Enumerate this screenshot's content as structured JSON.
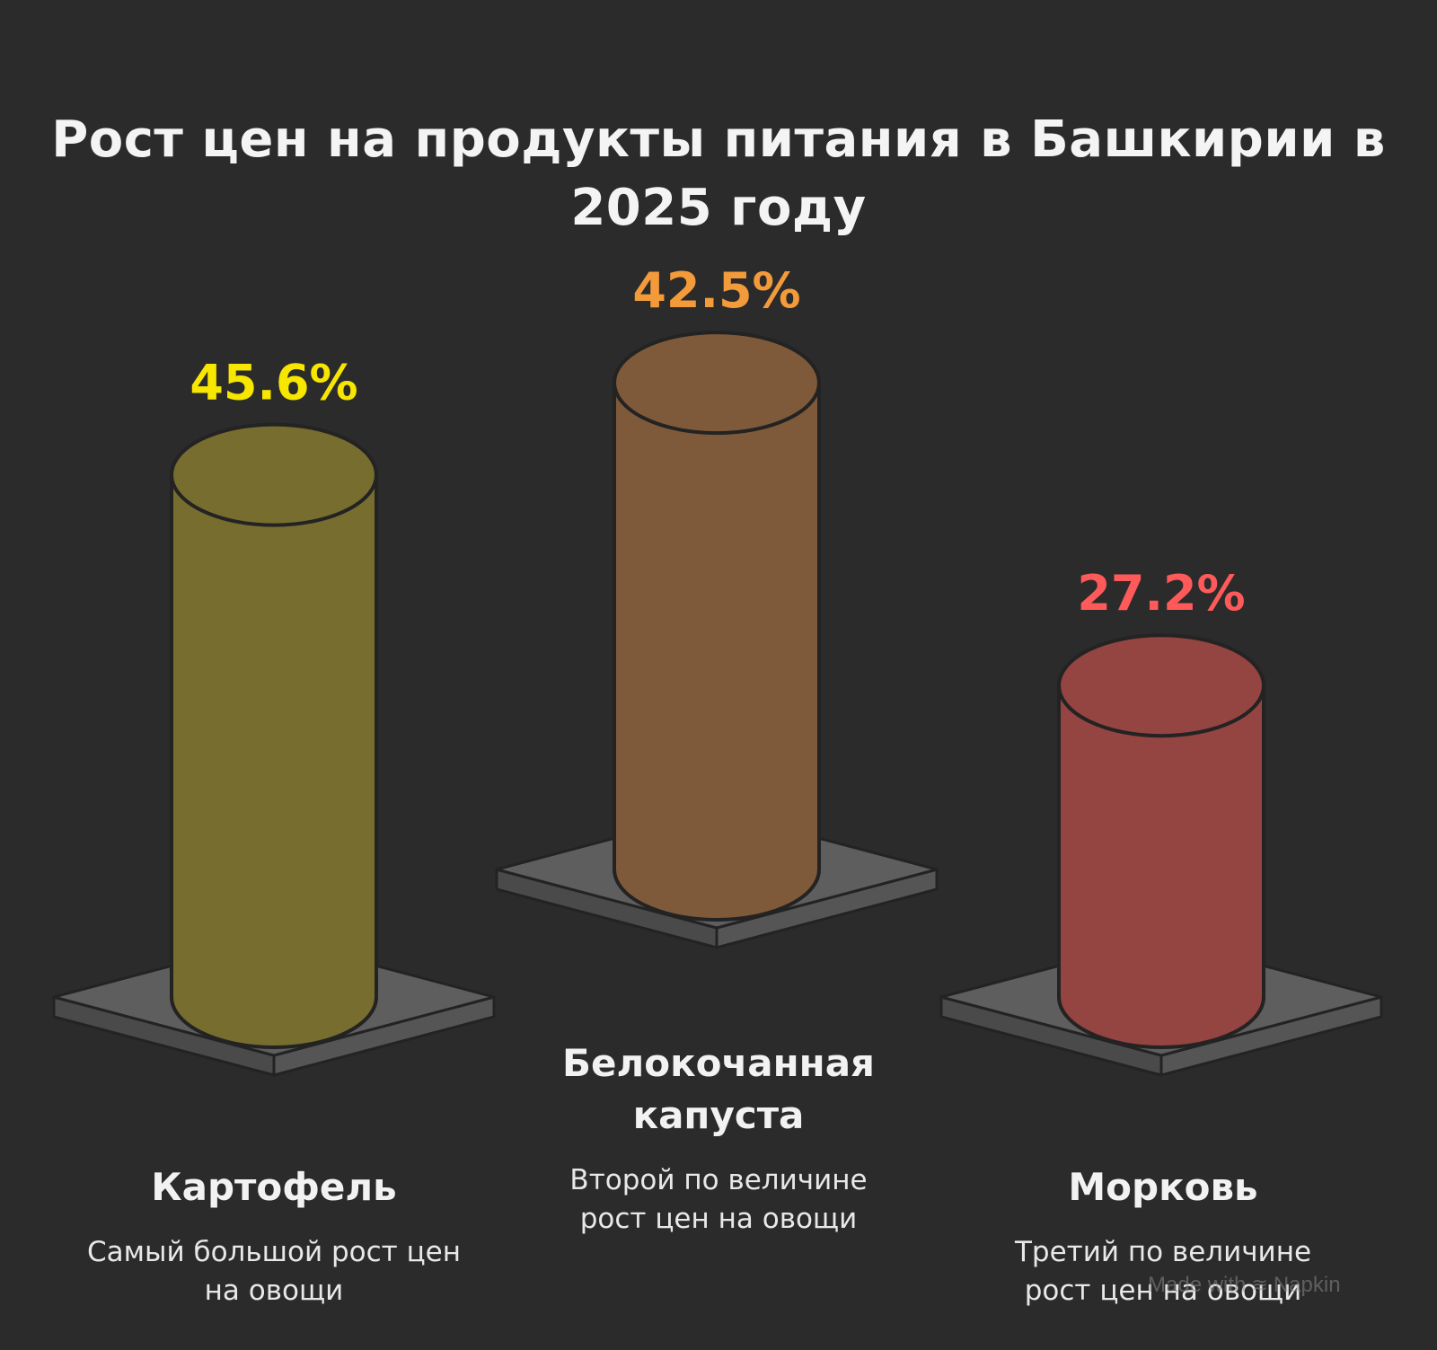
{
  "chart_data": {
    "type": "bar",
    "title": "Рост цен на продукты питания в Башкирии в 2025 году",
    "categories": [
      "Картофель",
      "Белокочанная капуста",
      "Морковь"
    ],
    "values": [
      45.6,
      42.5,
      27.2
    ],
    "value_labels": [
      "45.6%",
      "42.5%",
      "27.2%"
    ],
    "descriptions": [
      "Самый большой рост цен на овощи",
      "Второй по величине рост цен на овощи",
      "Третий по величине рост цен на овощи"
    ],
    "colors": {
      "bars": [
        "#776d2f",
        "#7f5a3a",
        "#944441"
      ],
      "labels": [
        "#f7e600",
        "#f39a3b",
        "#ff5a5a"
      ],
      "pedestal_top": "#5e5e5e",
      "pedestal_side": "#4a4a4a",
      "outline": "#232323"
    },
    "grid": false,
    "legend": "none"
  },
  "watermark": {
    "prefix": "Made with",
    "brand": "Napkin",
    "icon": "napkin-logo-icon"
  }
}
